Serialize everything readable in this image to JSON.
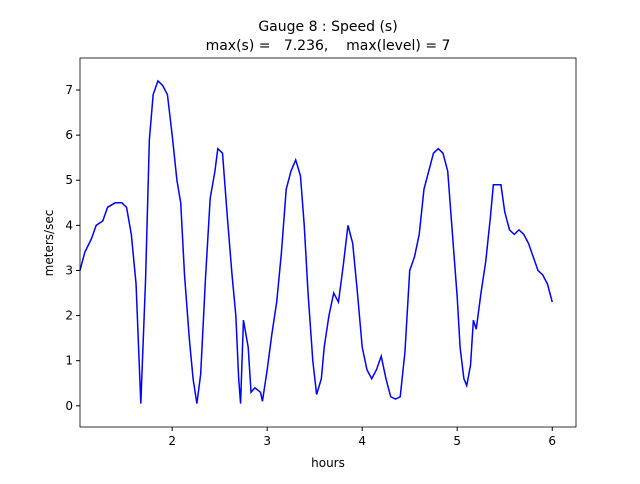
{
  "chart_data": {
    "type": "line",
    "title": [
      "Gauge 8 : Speed (s)",
      "max(s) =   7.236,    max(level) = 7"
    ],
    "xlabel": "hours",
    "ylabel": "meters/sec",
    "xlim": [
      1.03,
      6.25
    ],
    "ylim": [
      -0.47,
      7.71
    ],
    "xticks": [
      2,
      3,
      4,
      5,
      6
    ],
    "yticks": [
      0,
      1,
      2,
      3,
      4,
      5,
      6,
      7
    ],
    "grid": false,
    "series": [
      {
        "name": "s",
        "color": "#0000ff",
        "x": [
          1.03,
          1.08,
          1.15,
          1.2,
          1.27,
          1.32,
          1.4,
          1.47,
          1.52,
          1.57,
          1.62,
          1.67,
          1.72,
          1.76,
          1.8,
          1.85,
          1.9,
          1.95,
          2.0,
          2.05,
          2.09,
          2.13,
          2.18,
          2.22,
          2.26,
          2.3,
          2.35,
          2.4,
          2.45,
          2.48,
          2.53,
          2.58,
          2.63,
          2.67,
          2.7,
          2.72,
          2.75,
          2.8,
          2.83,
          2.87,
          2.93,
          2.95,
          3.0,
          3.05,
          3.1,
          3.15,
          3.2,
          3.25,
          3.3,
          3.35,
          3.39,
          3.43,
          3.48,
          3.52,
          3.57,
          3.6,
          3.65,
          3.7,
          3.75,
          3.8,
          3.85,
          3.9,
          3.95,
          4.0,
          4.05,
          4.1,
          4.15,
          4.2,
          4.25,
          4.3,
          4.35,
          4.4,
          4.45,
          4.5,
          4.55,
          4.6,
          4.65,
          4.7,
          4.75,
          4.8,
          4.85,
          4.9,
          4.95,
          5.0,
          5.03,
          5.07,
          5.1,
          5.14,
          5.17,
          5.2,
          5.25,
          5.3,
          5.35,
          5.38,
          5.42,
          5.46,
          5.5,
          5.55,
          5.6,
          5.65,
          5.7,
          5.75,
          5.8,
          5.85,
          5.9,
          5.95,
          6.0
        ],
        "values": [
          3.0,
          3.4,
          3.7,
          4.0,
          4.1,
          4.4,
          4.5,
          4.5,
          4.4,
          3.8,
          2.7,
          0.05,
          2.8,
          5.9,
          6.9,
          7.2,
          7.1,
          6.9,
          6.0,
          5.0,
          4.5,
          2.9,
          1.5,
          0.6,
          0.05,
          0.7,
          2.8,
          4.6,
          5.2,
          5.7,
          5.6,
          4.2,
          2.9,
          2.0,
          0.6,
          0.05,
          1.9,
          1.3,
          0.3,
          0.4,
          0.3,
          0.1,
          0.8,
          1.6,
          2.3,
          3.4,
          4.8,
          5.2,
          5.45,
          5.1,
          4.0,
          2.5,
          1.0,
          0.25,
          0.6,
          1.3,
          2.0,
          2.5,
          2.3,
          3.1,
          4.0,
          3.6,
          2.5,
          1.3,
          0.8,
          0.6,
          0.8,
          1.1,
          0.6,
          0.2,
          0.15,
          0.2,
          1.2,
          3.0,
          3.3,
          3.8,
          4.8,
          5.2,
          5.6,
          5.7,
          5.6,
          5.2,
          3.8,
          2.4,
          1.3,
          0.6,
          0.45,
          0.9,
          1.9,
          1.7,
          2.5,
          3.2,
          4.2,
          4.9,
          4.9,
          4.9,
          4.3,
          3.9,
          3.8,
          3.9,
          3.8,
          3.6,
          3.3,
          3.0,
          2.9,
          2.7,
          2.3
        ]
      }
    ]
  }
}
